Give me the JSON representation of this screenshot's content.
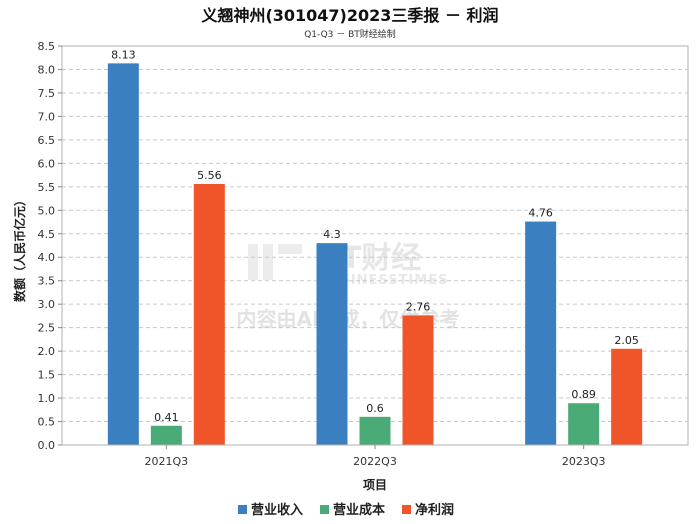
{
  "header": {
    "title": "义翘神州(301047)2023三季报 － 利润",
    "subtitle": "Q1-Q3 － BT财经绘制"
  },
  "watermark": {
    "brand": "BT财经",
    "brand_en": "BUSINESSTIMES",
    "note": "内容由AI生成，仅供参考"
  },
  "chart_data": {
    "type": "bar",
    "title": "义翘神州(301047)2023三季报 － 利润",
    "subtitle": "Q1-Q3 － BT财经绘制",
    "xlabel": "项目",
    "ylabel": "数额（人民币亿元）",
    "categories": [
      "2021Q3",
      "2022Q3",
      "2023Q3"
    ],
    "ylim": [
      0,
      8.5
    ],
    "yticks": [
      0.0,
      0.5,
      1.0,
      1.5,
      2.0,
      2.5,
      3.0,
      3.5,
      4.0,
      4.5,
      5.0,
      5.5,
      6.0,
      6.5,
      7.0,
      7.5,
      8.0,
      8.5
    ],
    "grid": true,
    "legend_position": "bottom",
    "series": [
      {
        "name": "营业收入",
        "color": "#3a80c0",
        "values": [
          8.13,
          4.3,
          4.76
        ],
        "labels": [
          "8.13",
          "4.3",
          "4.76"
        ]
      },
      {
        "name": "营业成本",
        "color": "#4aab77",
        "values": [
          0.41,
          0.6,
          0.89
        ],
        "labels": [
          "0.41",
          "0.6",
          "0.89"
        ]
      },
      {
        "name": "净利润",
        "color": "#ef5528",
        "values": [
          5.56,
          2.76,
          2.05
        ],
        "labels": [
          "5.56",
          "2.76",
          "2.05"
        ]
      }
    ]
  }
}
